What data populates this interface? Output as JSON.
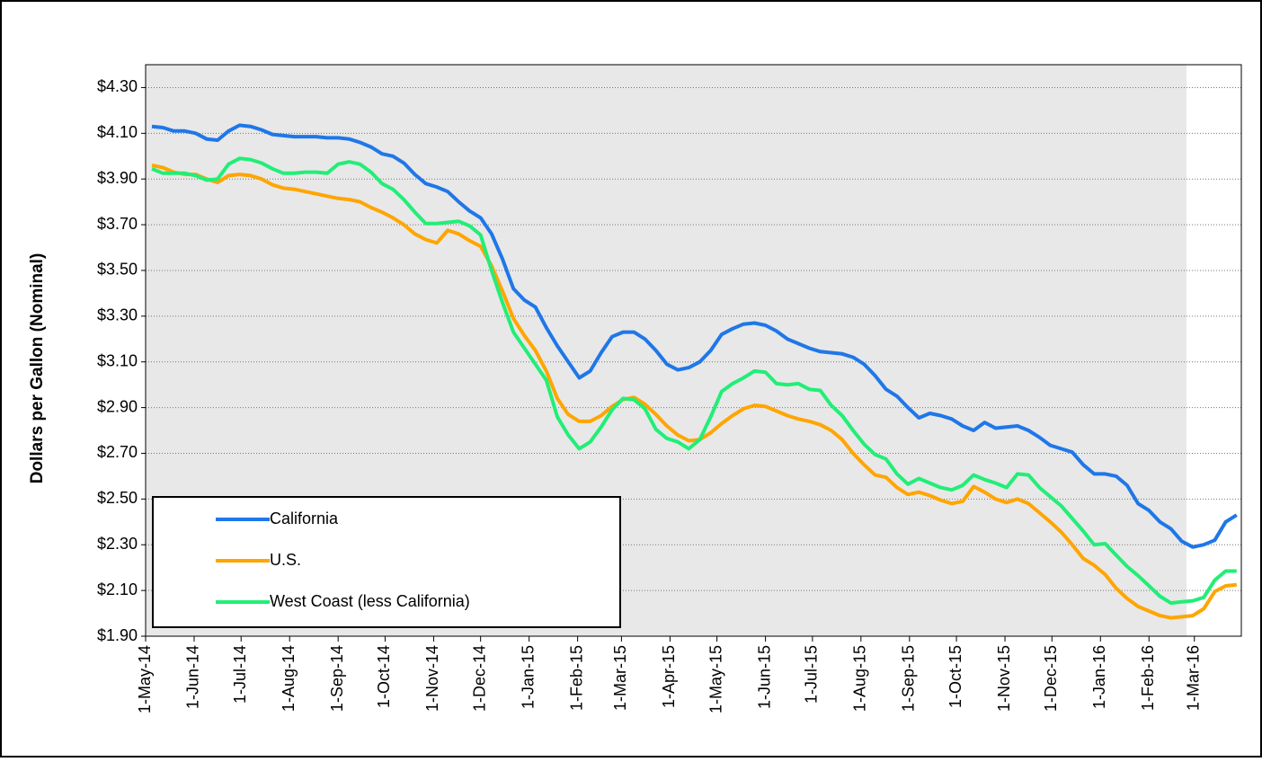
{
  "chart_data": {
    "type": "line",
    "y_label": "Dollars per Gallon (Nominal)",
    "x": [
      "2014-05-05",
      "2014-05-12",
      "2014-05-19",
      "2014-05-26",
      "2014-06-02",
      "2014-06-09",
      "2014-06-16",
      "2014-06-23",
      "2014-06-30",
      "2014-07-07",
      "2014-07-14",
      "2014-07-21",
      "2014-07-28",
      "2014-08-04",
      "2014-08-11",
      "2014-08-18",
      "2014-08-25",
      "2014-09-01",
      "2014-09-08",
      "2014-09-15",
      "2014-09-22",
      "2014-09-29",
      "2014-10-06",
      "2014-10-13",
      "2014-10-20",
      "2014-10-27",
      "2014-11-03",
      "2014-11-10",
      "2014-11-17",
      "2014-11-24",
      "2014-12-01",
      "2014-12-08",
      "2014-12-15",
      "2014-12-22",
      "2014-12-29",
      "2015-01-05",
      "2015-01-12",
      "2015-01-19",
      "2015-01-26",
      "2015-02-02",
      "2015-02-09",
      "2015-02-16",
      "2015-02-23",
      "2015-03-02",
      "2015-03-09",
      "2015-03-16",
      "2015-03-23",
      "2015-03-30",
      "2015-04-06",
      "2015-04-13",
      "2015-04-20",
      "2015-04-27",
      "2015-05-04",
      "2015-05-11",
      "2015-05-18",
      "2015-05-25",
      "2015-06-01",
      "2015-06-08",
      "2015-06-15",
      "2015-06-22",
      "2015-06-29",
      "2015-07-06",
      "2015-07-13",
      "2015-07-20",
      "2015-07-27",
      "2015-08-03",
      "2015-08-10",
      "2015-08-17",
      "2015-08-24",
      "2015-08-31",
      "2015-09-07",
      "2015-09-14",
      "2015-09-21",
      "2015-09-28",
      "2015-10-05",
      "2015-10-12",
      "2015-10-19",
      "2015-10-26",
      "2015-11-02",
      "2015-11-09",
      "2015-11-16",
      "2015-11-23",
      "2015-11-30",
      "2015-12-07",
      "2015-12-14",
      "2015-12-21",
      "2015-12-28",
      "2016-01-04",
      "2016-01-11",
      "2016-01-18",
      "2016-01-25",
      "2016-02-01",
      "2016-02-08",
      "2016-02-15",
      "2016-02-22",
      "2016-02-29",
      "2016-03-07",
      "2016-03-14",
      "2016-03-21",
      "2016-03-28"
    ],
    "series": [
      {
        "name": "California",
        "color": "#1f77e8",
        "values": [
          4.13,
          4.125,
          4.11,
          4.11,
          4.1,
          4.075,
          4.07,
          4.11,
          4.135,
          4.13,
          4.115,
          4.095,
          4.09,
          4.085,
          4.085,
          4.085,
          4.08,
          4.08,
          4.075,
          4.06,
          4.04,
          4.01,
          4.0,
          3.97,
          3.92,
          3.88,
          3.865,
          3.845,
          3.8,
          3.76,
          3.73,
          3.66,
          3.55,
          3.42,
          3.37,
          3.34,
          3.25,
          3.17,
          3.1,
          3.03,
          3.06,
          3.14,
          3.21,
          3.23,
          3.23,
          3.2,
          3.15,
          3.09,
          3.065,
          3.075,
          3.1,
          3.15,
          3.22,
          3.245,
          3.265,
          3.27,
          3.26,
          3.235,
          3.2,
          3.18,
          3.16,
          3.145,
          3.14,
          3.135,
          3.12,
          3.09,
          3.04,
          2.98,
          2.95,
          2.9,
          2.855,
          2.875,
          2.865,
          2.85,
          2.82,
          2.8,
          2.835,
          2.81,
          2.815,
          2.82,
          2.8,
          2.77,
          2.735,
          2.72,
          2.705,
          2.65,
          2.61,
          2.61,
          2.6,
          2.56,
          2.48,
          2.45,
          2.4,
          2.37,
          2.315,
          2.29,
          2.3,
          2.32,
          2.4,
          2.43
        ]
      },
      {
        "name": "U.S.",
        "color": "#ffa500",
        "values": [
          3.96,
          3.95,
          3.93,
          3.92,
          3.92,
          3.9,
          3.885,
          3.915,
          3.92,
          3.915,
          3.9,
          3.875,
          3.86,
          3.855,
          3.845,
          3.835,
          3.825,
          3.815,
          3.81,
          3.8,
          3.775,
          3.755,
          3.73,
          3.7,
          3.66,
          3.635,
          3.62,
          3.675,
          3.66,
          3.63,
          3.605,
          3.52,
          3.41,
          3.29,
          3.215,
          3.15,
          3.06,
          2.94,
          2.87,
          2.84,
          2.84,
          2.865,
          2.905,
          2.935,
          2.945,
          2.915,
          2.87,
          2.82,
          2.78,
          2.755,
          2.76,
          2.79,
          2.83,
          2.865,
          2.895,
          2.91,
          2.905,
          2.885,
          2.865,
          2.85,
          2.84,
          2.825,
          2.8,
          2.76,
          2.7,
          2.65,
          2.605,
          2.595,
          2.55,
          2.52,
          2.53,
          2.515,
          2.495,
          2.48,
          2.49,
          2.555,
          2.53,
          2.5,
          2.485,
          2.5,
          2.48,
          2.44,
          2.4,
          2.355,
          2.3,
          2.24,
          2.21,
          2.17,
          2.11,
          2.065,
          2.03,
          2.01,
          1.99,
          1.98,
          1.985,
          1.99,
          2.02,
          2.095,
          2.12,
          2.125
        ]
      },
      {
        "name": "West Coast (less California)",
        "color": "#22ee77",
        "values": [
          3.945,
          3.925,
          3.925,
          3.925,
          3.915,
          3.895,
          3.9,
          3.965,
          3.99,
          3.985,
          3.97,
          3.945,
          3.925,
          3.925,
          3.93,
          3.93,
          3.925,
          3.965,
          3.975,
          3.965,
          3.93,
          3.88,
          3.855,
          3.81,
          3.755,
          3.705,
          3.705,
          3.71,
          3.715,
          3.695,
          3.655,
          3.5,
          3.36,
          3.23,
          3.16,
          3.09,
          3.02,
          2.86,
          2.78,
          2.72,
          2.75,
          2.815,
          2.89,
          2.94,
          2.935,
          2.895,
          2.805,
          2.765,
          2.75,
          2.72,
          2.76,
          2.86,
          2.97,
          3.005,
          3.03,
          3.06,
          3.055,
          3.005,
          3.0,
          3.005,
          2.98,
          2.975,
          2.91,
          2.865,
          2.8,
          2.74,
          2.695,
          2.675,
          2.61,
          2.565,
          2.59,
          2.57,
          2.55,
          2.54,
          2.56,
          2.605,
          2.585,
          2.57,
          2.55,
          2.61,
          2.605,
          2.55,
          2.51,
          2.47,
          2.415,
          2.36,
          2.3,
          2.305,
          2.255,
          2.205,
          2.165,
          2.12,
          2.075,
          2.045,
          2.05,
          2.055,
          2.07,
          2.145,
          2.185,
          2.185
        ]
      }
    ],
    "xlim": [
      "2014-05-01",
      "2016-03-31"
    ],
    "xticks": [
      {
        "value": "2014-05-01",
        "label": "1-May-14"
      },
      {
        "value": "2014-06-01",
        "label": "1-Jun-14"
      },
      {
        "value": "2014-07-01",
        "label": "1-Jul-14"
      },
      {
        "value": "2014-08-01",
        "label": "1-Aug-14"
      },
      {
        "value": "2014-09-01",
        "label": "1-Sep-14"
      },
      {
        "value": "2014-10-01",
        "label": "1-Oct-14"
      },
      {
        "value": "2014-11-01",
        "label": "1-Nov-14"
      },
      {
        "value": "2014-12-01",
        "label": "1-Dec-14"
      },
      {
        "value": "2015-01-01",
        "label": "1-Jan-15"
      },
      {
        "value": "2015-02-01",
        "label": "1-Feb-15"
      },
      {
        "value": "2015-03-01",
        "label": "1-Mar-15"
      },
      {
        "value": "2015-04-01",
        "label": "1-Apr-15"
      },
      {
        "value": "2015-05-01",
        "label": "1-May-15"
      },
      {
        "value": "2015-06-01",
        "label": "1-Jun-15"
      },
      {
        "value": "2015-07-01",
        "label": "1-Jul-15"
      },
      {
        "value": "2015-08-01",
        "label": "1-Aug-15"
      },
      {
        "value": "2015-09-01",
        "label": "1-Sep-15"
      },
      {
        "value": "2015-10-01",
        "label": "1-Oct-15"
      },
      {
        "value": "2015-11-01",
        "label": "1-Nov-15"
      },
      {
        "value": "2015-12-01",
        "label": "1-Dec-15"
      },
      {
        "value": "2016-01-01",
        "label": "1-Jan-16"
      },
      {
        "value": "2016-02-01",
        "label": "1-Feb-16"
      },
      {
        "value": "2016-03-01",
        "label": "1-Mar-16"
      }
    ],
    "ylim": [
      1.9,
      4.4
    ],
    "yticks": [
      {
        "value": 1.9,
        "label": "$1.90"
      },
      {
        "value": 2.1,
        "label": "$2.10"
      },
      {
        "value": 2.3,
        "label": "$2.30"
      },
      {
        "value": 2.5,
        "label": "$2.50"
      },
      {
        "value": 2.7,
        "label": "$2.70"
      },
      {
        "value": 2.9,
        "label": "$2.90"
      },
      {
        "value": 3.1,
        "label": "$3.10"
      },
      {
        "value": 3.3,
        "label": "$3.30"
      },
      {
        "value": 3.5,
        "label": "$3.50"
      },
      {
        "value": 3.7,
        "label": "$3.70"
      },
      {
        "value": 3.9,
        "label": "$3.90"
      },
      {
        "value": 4.1,
        "label": "$4.10"
      },
      {
        "value": 4.3,
        "label": "$4.30"
      }
    ],
    "grid": true,
    "shaded_xlim": [
      "2014-05-01",
      "2016-02-25"
    ],
    "legend": "lower left"
  }
}
